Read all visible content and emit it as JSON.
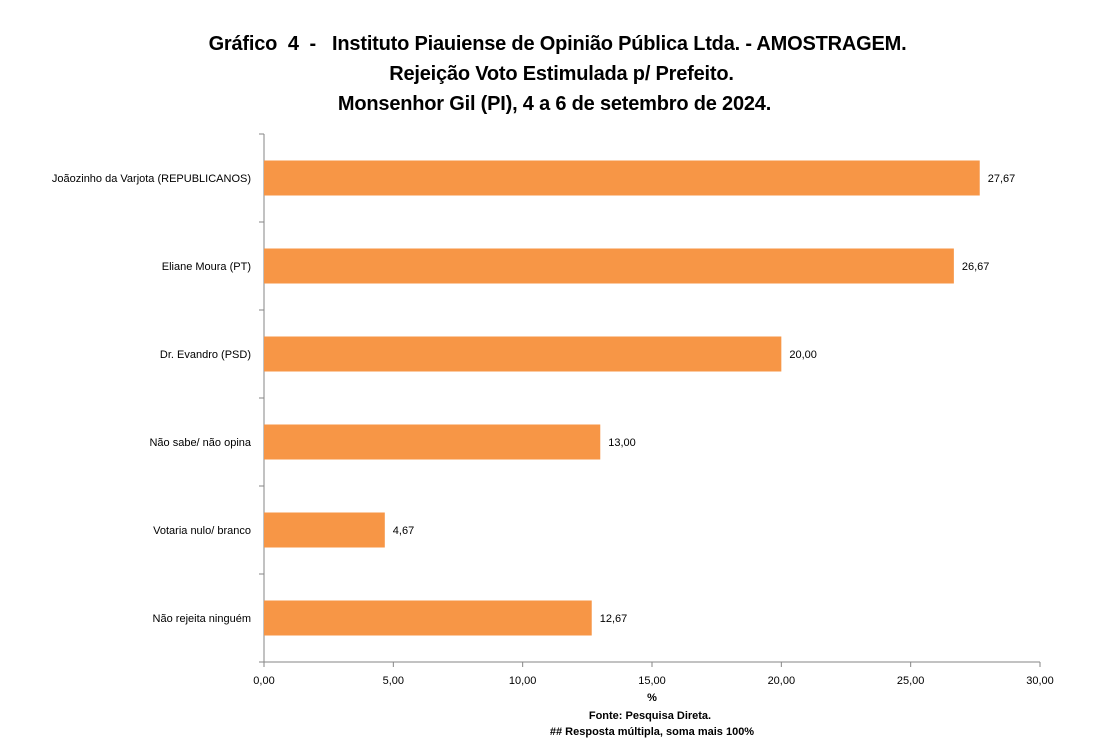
{
  "titles": {
    "line1": "Gráfico  4  -   Instituto Piauiense de Opinião Pública Ltda. - AMOSTRAGEM.",
    "line2": "Rejeição Voto Estimulada p/ Prefeito.",
    "line3": "Monsenhor Gil (PI), 4 a 6 de setembro de 2024."
  },
  "footer": {
    "source": "Fonte: Pesquisa Direta.",
    "note": "##  Resposta múltipla, soma mais 100%"
  },
  "chart_data": {
    "type": "bar",
    "orientation": "horizontal",
    "title": "Gráfico 4 - Instituto Piauiense de Opinião Pública Ltda. - AMOSTRAGEM. Rejeição Voto Estimulada p/ Prefeito. Monsenhor Gil (PI), 4 a 6 de setembro de 2024.",
    "categories": [
      "Joãozinho da Varjota (REPUBLICANOS)",
      "Eliane Moura (PT)",
      "Dr. Evandro (PSD)",
      "Não sabe/ não opina",
      "Votaria nulo/ branco",
      "Não rejeita ninguém"
    ],
    "values": [
      27.67,
      26.67,
      20.0,
      13.0,
      4.67,
      12.67
    ],
    "value_labels": [
      "27,67",
      "26,67",
      "20,00",
      "13,00",
      "4,67",
      "12,67"
    ],
    "xlabel": "%",
    "ylabel": "",
    "xlim": [
      0,
      30
    ],
    "ticks": [
      0,
      5,
      10,
      15,
      20,
      25,
      30
    ],
    "tick_labels": [
      "0,00",
      "5,00",
      "10,00",
      "15,00",
      "20,00",
      "25,00",
      "30,00"
    ],
    "bar_color": "#F79646",
    "grid": false,
    "legend": "none"
  }
}
